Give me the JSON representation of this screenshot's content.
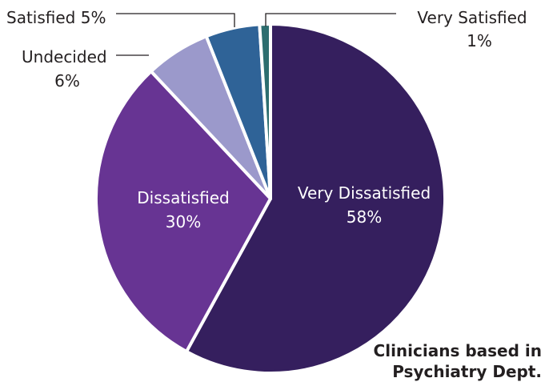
{
  "chart_data": {
    "type": "pie",
    "slices": [
      {
        "label": "Very Dissatisfied",
        "value": 58,
        "pct_text": "58%",
        "color": "#351f5e"
      },
      {
        "label": "Dissatisfied",
        "value": 30,
        "pct_text": "30%",
        "color": "#673493"
      },
      {
        "label": "Undecided",
        "value": 6,
        "pct_text": "6%",
        "color": "#9b99cb"
      },
      {
        "label": "Satisfied",
        "value": 5,
        "pct_text": "5%",
        "color": "#2f6397"
      },
      {
        "label": "Very Satisfied",
        "value": 1,
        "pct_text": "1%",
        "color": "#2d6e6f"
      }
    ],
    "annotation_lines": [
      "Clinicians based in",
      "Psychiatry Dept."
    ]
  }
}
